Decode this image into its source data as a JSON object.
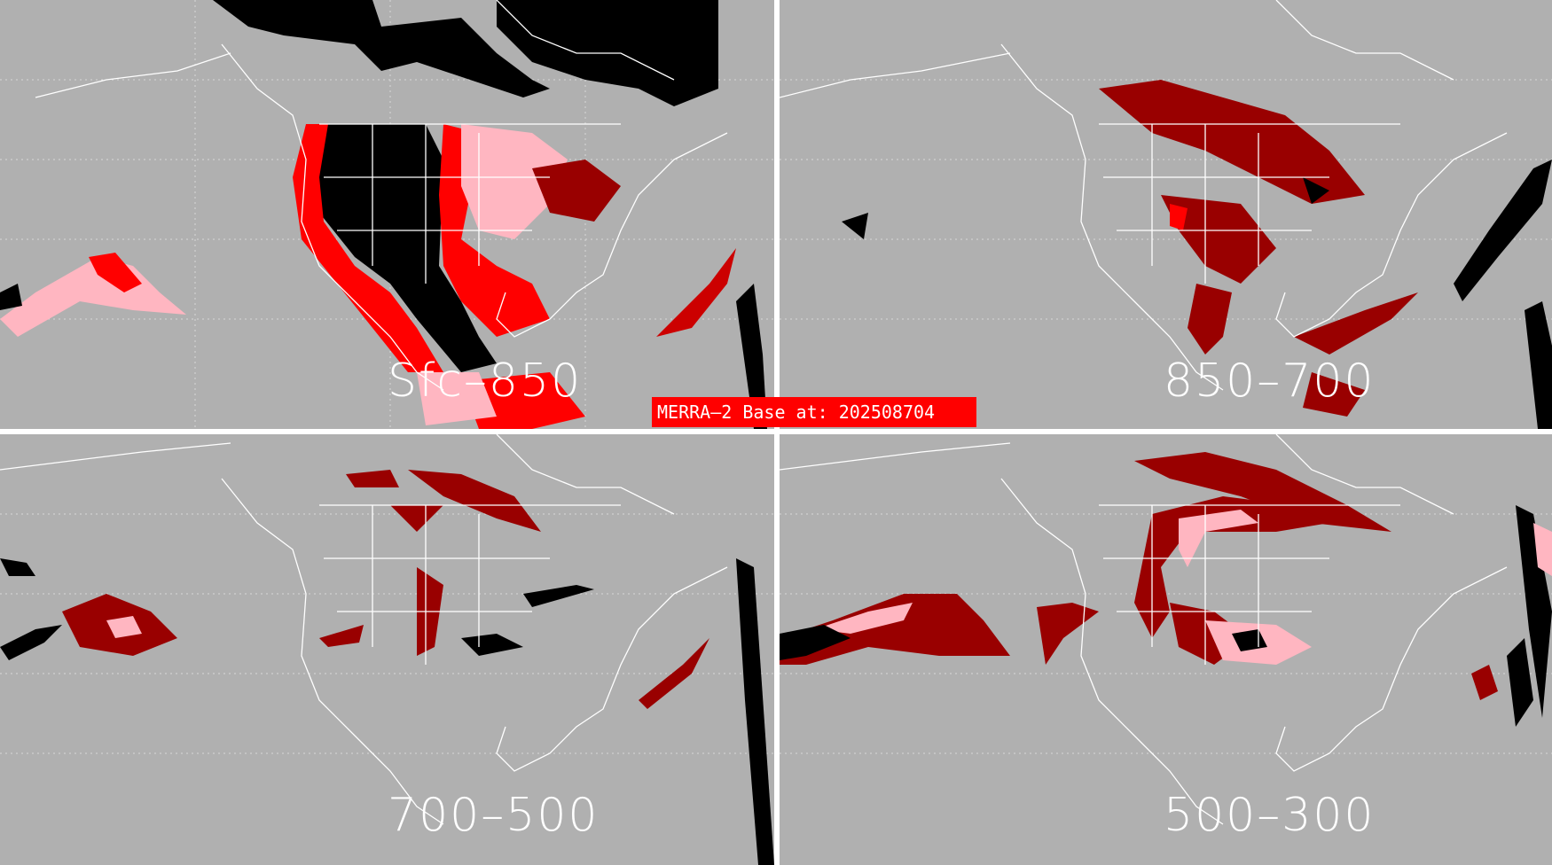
{
  "title": "",
  "panels": [
    {
      "label": "Sfc–850"
    },
    {
      "label": "850–700"
    },
    {
      "label": "700–500"
    },
    {
      "label": "500–300"
    }
  ],
  "banner": {
    "text": "MERRA–2 Base at: 202508704"
  },
  "colors": {
    "background": "#b0b0b0",
    "divider": "#ffffff",
    "coastline": "#ffffff",
    "category_black": "#000000",
    "category_red": "#ff0000",
    "category_dark_red": "#990000",
    "category_pink": "#ffb6c1",
    "banner": "#ff0000"
  }
}
